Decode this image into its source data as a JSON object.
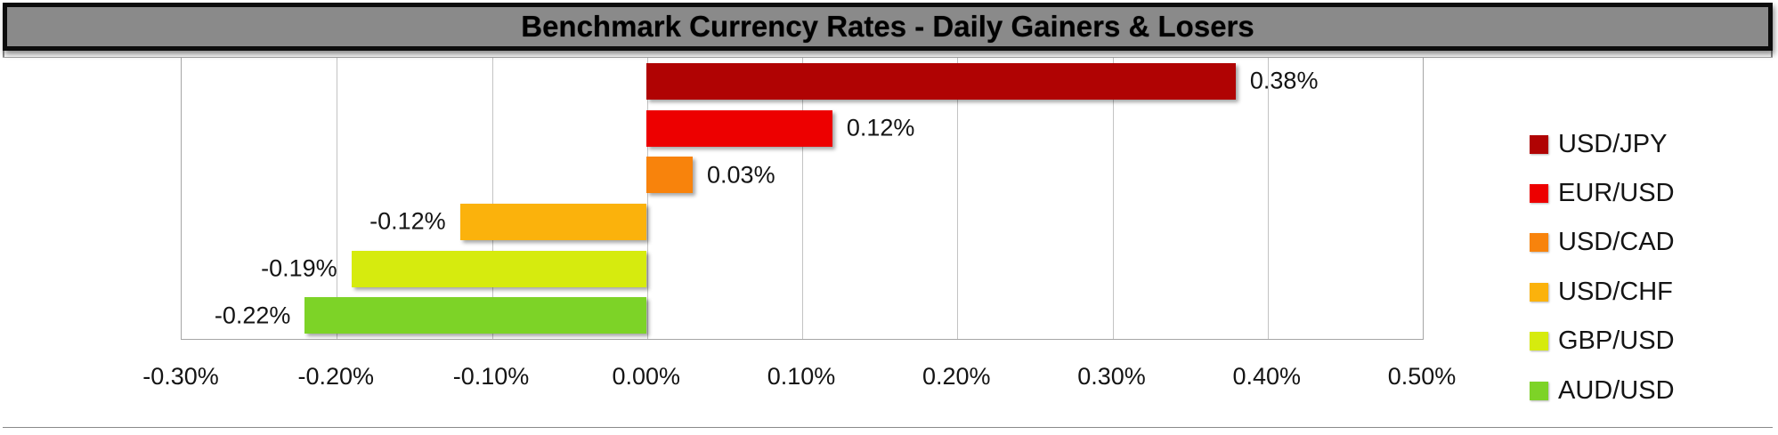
{
  "title_bar": {
    "text": "Benchmark Currency Rates - Daily Gainers & Losers"
  },
  "chart_data": {
    "type": "bar",
    "orientation": "horizontal",
    "title": "Benchmark Currency Rates - Daily Gainers & Losers",
    "categories": [
      "USD/JPY",
      "EUR/USD",
      "USD/CAD",
      "USD/CHF",
      "GBP/USD",
      "AUD/USD"
    ],
    "values": [
      0.38,
      0.12,
      0.03,
      -0.12,
      -0.19,
      -0.22
    ],
    "data_labels": [
      "0.38%",
      "0.12%",
      "0.03%",
      "-0.12%",
      "-0.19%",
      "-0.22%"
    ],
    "bar_colors": [
      "#B00303",
      "#ED0000",
      "#F8830C",
      "#FBB20C",
      "#D6EB0E",
      "#7DD327"
    ],
    "x_axis": {
      "tick_labels": [
        "-0.30%",
        "-0.20%",
        "-0.10%",
        "0.00%",
        "0.10%",
        "0.20%",
        "0.30%",
        "0.40%",
        "0.50%"
      ],
      "tick_values": [
        -0.3,
        -0.2,
        -0.1,
        0.0,
        0.1,
        0.2,
        0.3,
        0.4,
        0.5
      ],
      "min": -0.3,
      "max": 0.5,
      "unit": "%"
    },
    "grid": true,
    "legend": {
      "position": "right",
      "entries": [
        "USD/JPY",
        "EUR/USD",
        "USD/CAD",
        "USD/CHF",
        "GBP/USD",
        "AUD/USD"
      ]
    }
  },
  "style_colors": {
    "title_bg": "#8A8A8A",
    "title_border": "#0C0C0C",
    "grid_line": "#C3C3C3",
    "axis_line": "#A6A6A6",
    "text": "#141414"
  }
}
